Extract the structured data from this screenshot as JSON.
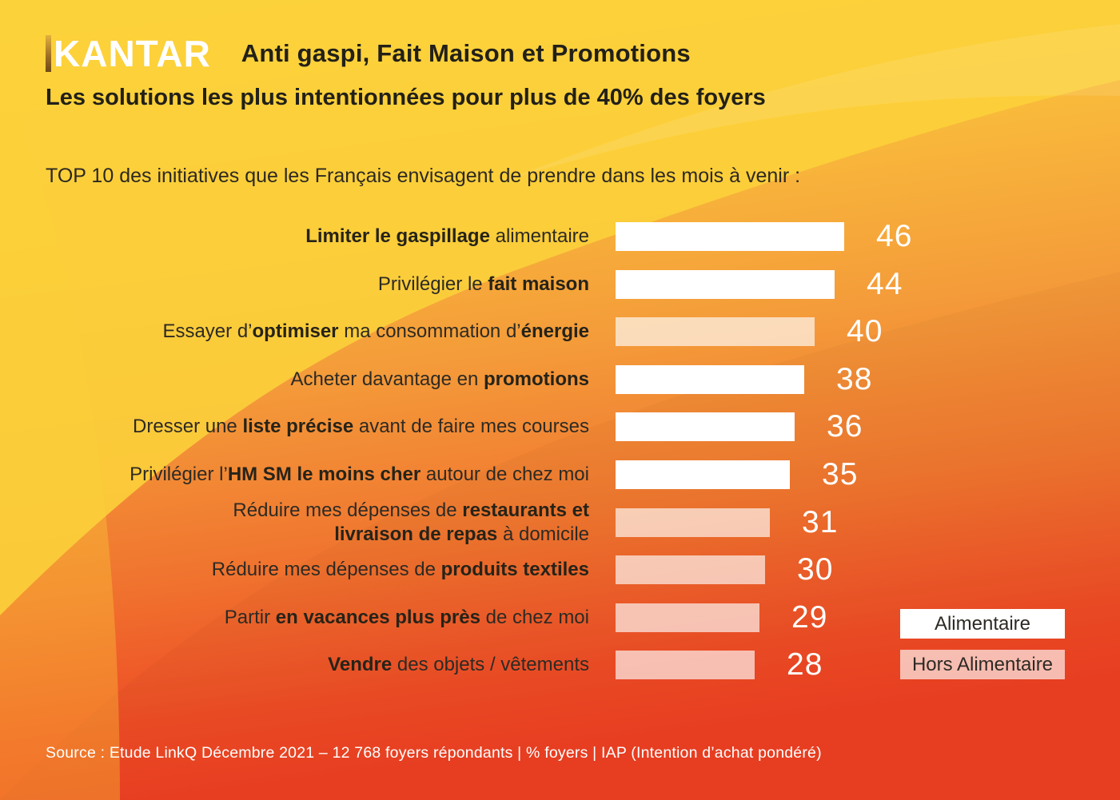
{
  "header": {
    "logo": "KANTAR",
    "title": "Anti gaspi, Fait Maison et Promotions",
    "subtitle": "Les solutions les plus intentionnées pour plus de 40% des foyers"
  },
  "intro": "TOP 10 des initiatives que les Français envisagent de prendre dans les mois à venir :",
  "legend": [
    {
      "label": "Alimentaire",
      "type": "alimentaire"
    },
    {
      "label": "Hors Alimentaire",
      "type": "hors-alimentaire"
    }
  ],
  "source": "Source : Etude LinkQ Décembre 2021 – 12 768 foyers répondants | % foyers | IAP (Intention d’achat pondéré)",
  "colors": {
    "background_top": "#FCD43A",
    "background_mid": "#F49C3A",
    "background_bottom": "#ED4023",
    "bar_alimentaire": "#FFFFFF",
    "bar_hors_alimentaire": "rgba(255,255,255,0.65)",
    "text_dark": "#2D2A24",
    "text_light": "#FFFFFF"
  },
  "chart_data": {
    "type": "bar",
    "orientation": "horizontal",
    "title": "TOP 10 des initiatives que les Français envisagent de prendre dans les mois à venir :",
    "value_unit": "% foyers (IAP)",
    "xlim": [
      0,
      50
    ],
    "grid": false,
    "legend_position": "bottom-right",
    "categories_legend": [
      "Alimentaire",
      "Hors Alimentaire"
    ],
    "items": [
      {
        "label": "Limiter le gaspillage alimentaire",
        "value": 46,
        "category": "alimentaire",
        "segments": [
          {
            "text": "Limiter le gaspillage",
            "bold": true
          },
          {
            "text": " alimentaire",
            "bold": false
          }
        ]
      },
      {
        "label": "Privilégier le fait maison",
        "value": 44,
        "category": "alimentaire",
        "segments": [
          {
            "text": "Privilégier le ",
            "bold": false
          },
          {
            "text": "fait maison",
            "bold": true
          }
        ]
      },
      {
        "label": "Essayer d’optimiser ma consommation d’énergie",
        "value": 40,
        "category": "hors-alimentaire",
        "segments": [
          {
            "text": "Essayer d’",
            "bold": false
          },
          {
            "text": "optimiser",
            "bold": true
          },
          {
            "text": " ma consommation d’",
            "bold": false
          },
          {
            "text": "énergie",
            "bold": true
          }
        ]
      },
      {
        "label": "Acheter davantage en promotions",
        "value": 38,
        "category": "alimentaire",
        "segments": [
          {
            "text": "Acheter davantage en ",
            "bold": false
          },
          {
            "text": "promotions",
            "bold": true
          }
        ]
      },
      {
        "label": "Dresser une liste précise avant de faire mes courses",
        "value": 36,
        "category": "alimentaire",
        "segments": [
          {
            "text": "Dresser une ",
            "bold": false
          },
          {
            "text": "liste précise",
            "bold": true
          },
          {
            "text": " avant de faire mes courses",
            "bold": false
          }
        ]
      },
      {
        "label": "Privilégier l’HM SM le moins cher autour de chez moi",
        "value": 35,
        "category": "alimentaire",
        "segments": [
          {
            "text": "Privilégier l’",
            "bold": false
          },
          {
            "text": "HM SM le moins cher",
            "bold": true
          },
          {
            "text": " autour de chez moi",
            "bold": false
          }
        ]
      },
      {
        "label": "Réduire mes dépenses de restaurants et livraison de repas à domicile",
        "value": 31,
        "category": "hors-alimentaire",
        "segments": [
          {
            "text": "Réduire mes dépenses de ",
            "bold": false
          },
          {
            "text": "restaurants et",
            "bold": true,
            "break_after": true
          },
          {
            "text": "livraison de repas",
            "bold": true
          },
          {
            "text": " à domicile",
            "bold": false
          }
        ]
      },
      {
        "label": "Réduire mes dépenses de produits textiles",
        "value": 30,
        "category": "hors-alimentaire",
        "segments": [
          {
            "text": "Réduire mes dépenses de ",
            "bold": false
          },
          {
            "text": "produits textiles",
            "bold": true
          }
        ]
      },
      {
        "label": "Partir en vacances plus près de chez moi",
        "value": 29,
        "category": "hors-alimentaire",
        "segments": [
          {
            "text": "Partir ",
            "bold": false
          },
          {
            "text": "en vacances plus près",
            "bold": true
          },
          {
            "text": " de chez moi",
            "bold": false
          }
        ]
      },
      {
        "label": "Vendre des objets / vêtements",
        "value": 28,
        "category": "hors-alimentaire",
        "segments": [
          {
            "text": "Vendre",
            "bold": true
          },
          {
            "text": " des objets / vêtements",
            "bold": false
          }
        ]
      }
    ]
  }
}
